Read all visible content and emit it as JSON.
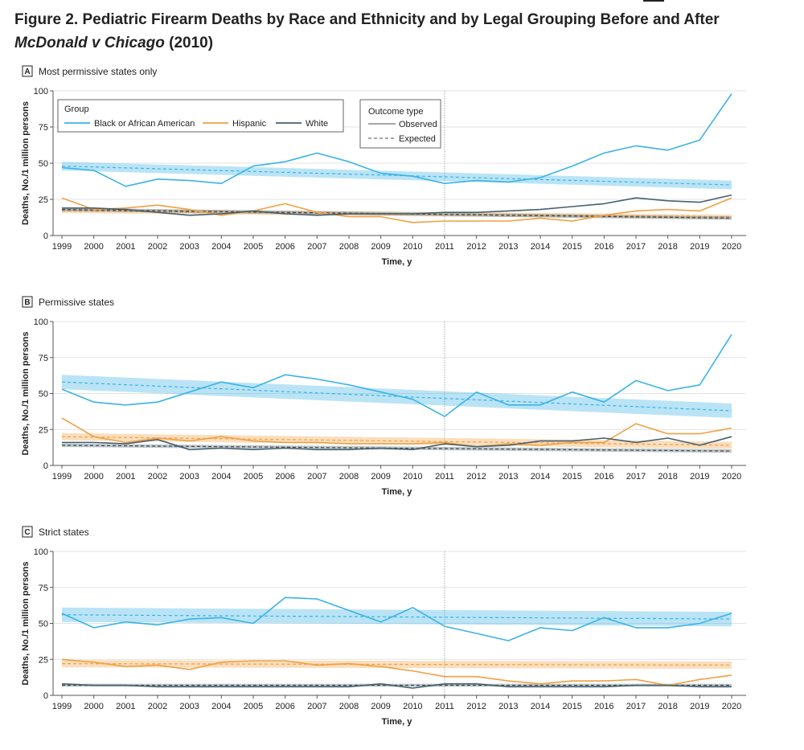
{
  "figure": {
    "title_prefix": "Figure 2.",
    "title_main": "Pediatric Firearm Deaths by Race and Ethnicity and by Legal Grouping Before and After",
    "title_case": "McDonald v Chicago",
    "title_year": "(2010)"
  },
  "colors": {
    "black": "#3ab3e6",
    "hispanic": "#f0a043",
    "white": "#46606f",
    "grid": "#e3e3e3",
    "axis": "#555555"
  },
  "legend": {
    "group_title": "Group",
    "group_items": [
      "Black or African American",
      "Hispanic",
      "White"
    ],
    "outcome_title": "Outcome type",
    "outcome_items": [
      "Observed",
      "Expected"
    ]
  },
  "chart_data": [
    {
      "type": "line",
      "panel": "A",
      "title": "Most permissive states only",
      "xlabel": "Time, y",
      "ylabel": "Deaths, No./1 million persons",
      "ylim": [
        0,
        100
      ],
      "yticks": [
        0,
        25,
        50,
        75,
        100
      ],
      "x": [
        1999,
        2000,
        2001,
        2002,
        2003,
        2004,
        2005,
        2006,
        2007,
        2008,
        2009,
        2010,
        2011,
        2012,
        2013,
        2014,
        2015,
        2016,
        2017,
        2018,
        2019,
        2020
      ],
      "intervention_year": 2011,
      "series": [
        {
          "name": "Black or African American",
          "color_key": "black",
          "observed": [
            47,
            45,
            34,
            39,
            38,
            36,
            48,
            51,
            57,
            51,
            43,
            41,
            36,
            38,
            37,
            40,
            48,
            57,
            62,
            59,
            66,
            98
          ],
          "expected": [
            48,
            35
          ],
          "band_halfwidth": 3
        },
        {
          "name": "Hispanic",
          "color_key": "hispanic",
          "observed": [
            26,
            18,
            19,
            21,
            18,
            14,
            17,
            22,
            16,
            13,
            13,
            9,
            10,
            10,
            10,
            12,
            10,
            14,
            17,
            18,
            17,
            26
          ],
          "expected": [
            17,
            13
          ],
          "band_halfwidth": 1.5
        },
        {
          "name": "White",
          "color_key": "white",
          "observed": [
            19,
            19,
            18,
            16,
            14,
            15,
            17,
            15,
            14,
            15,
            15,
            15,
            16,
            16,
            17,
            18,
            20,
            22,
            26,
            24,
            23,
            28
          ],
          "expected": [
            18,
            12
          ],
          "band_halfwidth": 1.2
        }
      ]
    },
    {
      "type": "line",
      "panel": "B",
      "title": "Permissive states",
      "xlabel": "Time, y",
      "ylabel": "Deaths, No./1 million persons",
      "ylim": [
        0,
        100
      ],
      "yticks": [
        0,
        25,
        50,
        75,
        100
      ],
      "x": [
        1999,
        2000,
        2001,
        2002,
        2003,
        2004,
        2005,
        2006,
        2007,
        2008,
        2009,
        2010,
        2011,
        2012,
        2013,
        2014,
        2015,
        2016,
        2017,
        2018,
        2019,
        2020
      ],
      "intervention_year": 2011,
      "series": [
        {
          "name": "Black or African American",
          "color_key": "black",
          "observed": [
            53,
            44,
            42,
            44,
            51,
            58,
            54,
            63,
            60,
            56,
            51,
            46,
            34,
            51,
            42,
            42,
            51,
            44,
            59,
            52,
            56,
            91
          ],
          "expected": [
            58,
            38
          ],
          "band_halfwidth": 5
        },
        {
          "name": "Hispanic",
          "color_key": "hispanic",
          "observed": [
            33,
            20,
            16,
            19,
            17,
            20,
            17,
            16,
            16,
            15,
            15,
            15,
            16,
            13,
            15,
            14,
            16,
            16,
            29,
            22,
            22,
            26
          ],
          "expected": [
            20,
            14
          ],
          "band_halfwidth": 2.5
        },
        {
          "name": "White",
          "color_key": "white",
          "observed": [
            16,
            16,
            15,
            18,
            11,
            12,
            11,
            12,
            11,
            11,
            12,
            11,
            15,
            13,
            14,
            17,
            17,
            19,
            16,
            19,
            14,
            20
          ],
          "expected": [
            14,
            10
          ],
          "band_halfwidth": 1.2
        }
      ]
    },
    {
      "type": "line",
      "panel": "C",
      "title": "Strict states",
      "xlabel": "Time, y",
      "ylabel": "Deaths, No./1 million persons",
      "ylim": [
        0,
        100
      ],
      "yticks": [
        0,
        25,
        50,
        75,
        100
      ],
      "x": [
        1999,
        2000,
        2001,
        2002,
        2003,
        2004,
        2005,
        2006,
        2007,
        2008,
        2009,
        2010,
        2011,
        2012,
        2013,
        2014,
        2015,
        2016,
        2017,
        2018,
        2019,
        2020
      ],
      "intervention_year": 2011,
      "series": [
        {
          "name": "Black or African American",
          "color_key": "black",
          "observed": [
            57,
            47,
            51,
            49,
            53,
            54,
            50,
            68,
            67,
            59,
            51,
            61,
            48,
            43,
            38,
            47,
            45,
            54,
            47,
            47,
            50,
            57
          ],
          "expected": [
            56,
            53
          ],
          "band_halfwidth": 5
        },
        {
          "name": "Hispanic",
          "color_key": "hispanic",
          "observed": [
            25,
            23,
            20,
            21,
            18,
            23,
            24,
            24,
            21,
            22,
            20,
            17,
            13,
            13,
            10,
            8,
            10,
            10,
            11,
            7,
            11,
            14
          ],
          "expected": [
            22,
            21
          ],
          "band_halfwidth": 2.5
        },
        {
          "name": "White",
          "color_key": "white",
          "observed": [
            8,
            7,
            7,
            6,
            6,
            6,
            6,
            6,
            6,
            6,
            8,
            5,
            8,
            8,
            6,
            6,
            6,
            6,
            7,
            7,
            6,
            6
          ],
          "expected": [
            7,
            7
          ],
          "band_halfwidth": 1
        }
      ]
    }
  ]
}
